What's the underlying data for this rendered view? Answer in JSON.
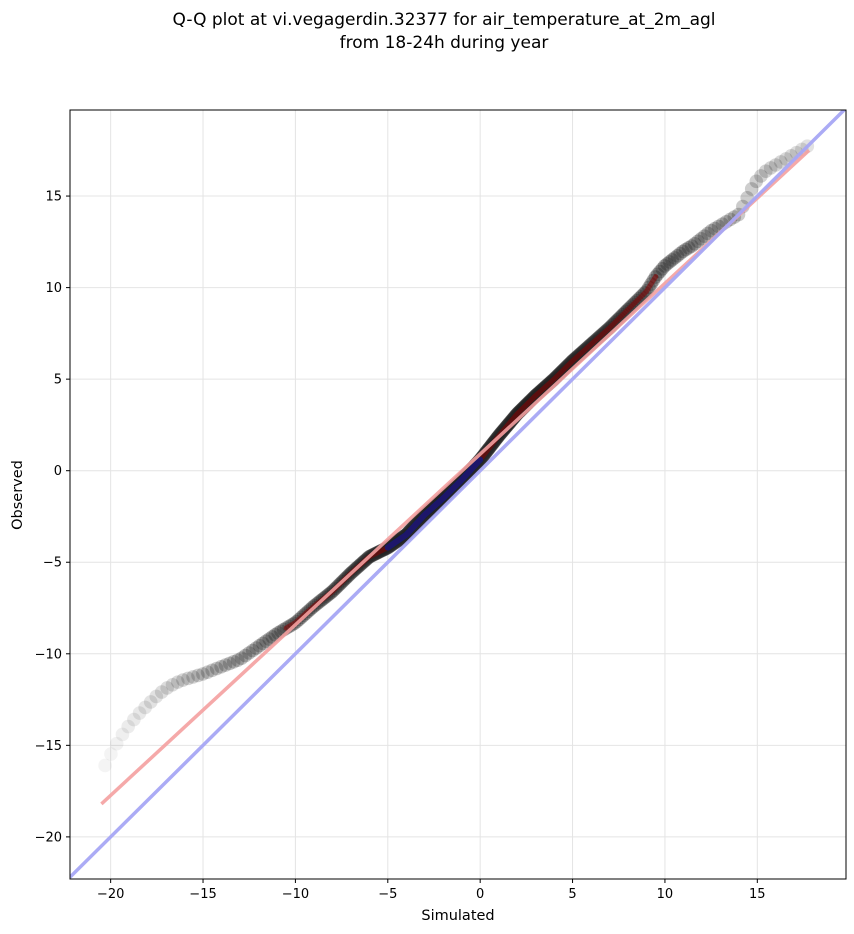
{
  "chart_data": {
    "type": "scatter",
    "title": [
      "Q-Q plot at vi.vegagerdin.32377 for air_temperature_at_2m_agl",
      "from 18-24h during year"
    ],
    "xlabel": "Simulated",
    "ylabel": "Observed",
    "xlim": [
      -22.2,
      19.8
    ],
    "ylim": [
      -22.3,
      19.7
    ],
    "xticks": [
      -20,
      -15,
      -10,
      -5,
      0,
      5,
      10,
      15
    ],
    "yticks": [
      -20,
      -15,
      -10,
      -5,
      0,
      5,
      10,
      15
    ],
    "xtick_labels": [
      "−20",
      "−15",
      "−10",
      "−5",
      "0",
      "5",
      "10",
      "15"
    ],
    "ytick_labels": [
      "−20",
      "−15",
      "−10",
      "−5",
      "0",
      "5",
      "10",
      "15"
    ],
    "grid": true,
    "quantile_curve": [
      [
        -20.3,
        -16.1
      ],
      [
        -20.0,
        -15.5
      ],
      [
        -19.5,
        -14.6
      ],
      [
        -19.0,
        -13.9
      ],
      [
        -18.5,
        -13.3
      ],
      [
        -18.0,
        -12.8
      ],
      [
        -17.5,
        -12.3
      ],
      [
        -17.0,
        -11.9
      ],
      [
        -16.5,
        -11.6
      ],
      [
        -16.0,
        -11.4
      ],
      [
        -15.0,
        -11.1
      ],
      [
        -14.0,
        -10.7
      ],
      [
        -13.0,
        -10.3
      ],
      [
        -12.0,
        -9.6
      ],
      [
        -11.0,
        -8.9
      ],
      [
        -10.0,
        -8.3
      ],
      [
        -9.0,
        -7.4
      ],
      [
        -8.0,
        -6.6
      ],
      [
        -7.0,
        -5.6
      ],
      [
        -6.0,
        -4.7
      ],
      [
        -5.0,
        -4.2
      ],
      [
        -4.0,
        -3.5
      ],
      [
        -3.0,
        -2.4
      ],
      [
        -2.0,
        -1.5
      ],
      [
        -1.0,
        -0.5
      ],
      [
        0.0,
        0.6
      ],
      [
        1.0,
        1.9
      ],
      [
        2.0,
        3.1
      ],
      [
        3.0,
        4.1
      ],
      [
        4.0,
        5.0
      ],
      [
        5.0,
        6.0
      ],
      [
        6.0,
        6.9
      ],
      [
        7.0,
        7.8
      ],
      [
        8.0,
        8.8
      ],
      [
        9.0,
        9.8
      ],
      [
        9.5,
        10.6
      ],
      [
        10.0,
        11.2
      ],
      [
        10.5,
        11.6
      ],
      [
        11.0,
        12.0
      ],
      [
        11.5,
        12.3
      ],
      [
        12.0,
        12.7
      ],
      [
        12.5,
        13.1
      ],
      [
        13.0,
        13.4
      ],
      [
        13.5,
        13.7
      ],
      [
        14.0,
        14.0
      ],
      [
        14.3,
        14.6
      ],
      [
        14.7,
        15.4
      ],
      [
        15.0,
        15.9
      ],
      [
        15.5,
        16.4
      ],
      [
        16.0,
        16.7
      ],
      [
        16.5,
        17.0
      ],
      [
        17.0,
        17.3
      ],
      [
        17.5,
        17.6
      ],
      [
        18.0,
        17.9
      ]
    ],
    "core_segment": [
      -5.0,
      0.0
    ],
    "fit_line": {
      "x": [
        -20.5,
        17.8
      ],
      "y": [
        -18.2,
        17.5
      ],
      "color": "#f4a0a0"
    },
    "identity_line": {
      "x": [
        -22.2,
        19.8
      ],
      "y": [
        -22.2,
        19.8
      ],
      "color": "#a6a6f4"
    },
    "colors": {
      "points": "#222222",
      "core_overlay": "#0a1a8a",
      "tail_overlay": "#8b0000"
    }
  }
}
